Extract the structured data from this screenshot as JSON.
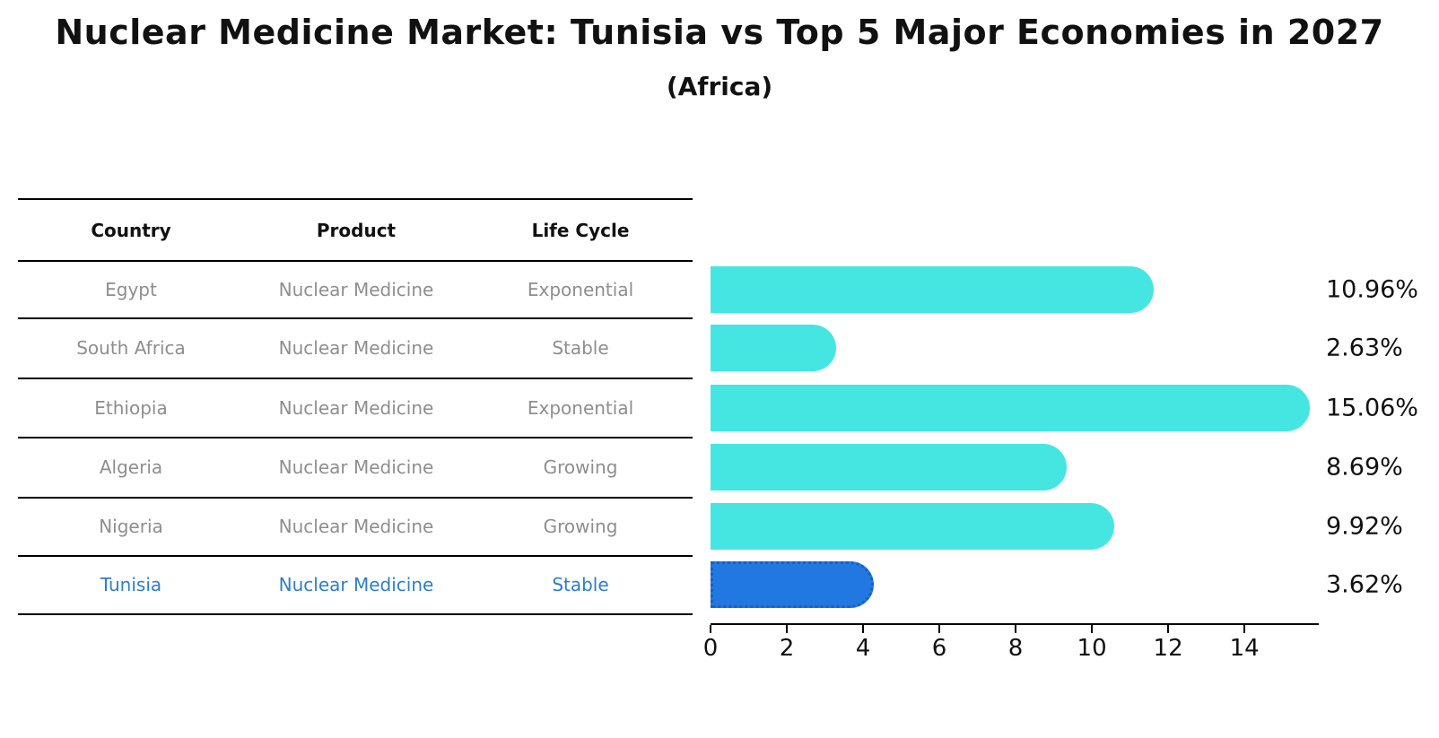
{
  "title": "Nuclear Medicine Market: Tunisia vs Top 5 Major Economies in 2027",
  "subtitle": "(Africa)",
  "table": {
    "headers": {
      "country": "Country",
      "product": "Product",
      "life_cycle": "Life Cycle"
    },
    "rows": [
      {
        "country": "Egypt",
        "product": "Nuclear Medicine",
        "life_cycle": "Exponential"
      },
      {
        "country": "South Africa",
        "product": "Nuclear Medicine",
        "life_cycle": "Stable"
      },
      {
        "country": "Ethiopia",
        "product": "Nuclear Medicine",
        "life_cycle": "Exponential"
      },
      {
        "country": "Algeria",
        "product": "Nuclear Medicine",
        "life_cycle": "Growing"
      },
      {
        "country": "Nigeria",
        "product": "Nuclear Medicine",
        "life_cycle": "Growing"
      },
      {
        "country": "Tunisia",
        "product": "Nuclear Medicine",
        "life_cycle": "Stable"
      }
    ],
    "highlight_row": "Tunisia"
  },
  "chart_data": {
    "type": "bar",
    "orientation": "horizontal",
    "categories": [
      "Egypt",
      "South Africa",
      "Ethiopia",
      "Algeria",
      "Nigeria",
      "Tunisia"
    ],
    "values": [
      10.96,
      2.63,
      15.06,
      8.69,
      9.92,
      3.62
    ],
    "value_labels": [
      "10.96%",
      "2.63%",
      "15.06%",
      "8.69%",
      "9.92%",
      "3.62%"
    ],
    "x_ticks": [
      "0",
      "2",
      "4",
      "6",
      "8",
      "10",
      "12",
      "14"
    ],
    "xlim": [
      0,
      15.95
    ],
    "grid": false,
    "legend": "none",
    "highlight_index": 5,
    "colors": {
      "bar": "#45E6E2",
      "highlight_bar": "#2178E0",
      "highlight_border": "#1A5EC4",
      "row_text": "#8E8E8E",
      "highlight_text": "#2E7EC6",
      "header_text": "#111111",
      "axis": "#000000"
    }
  }
}
